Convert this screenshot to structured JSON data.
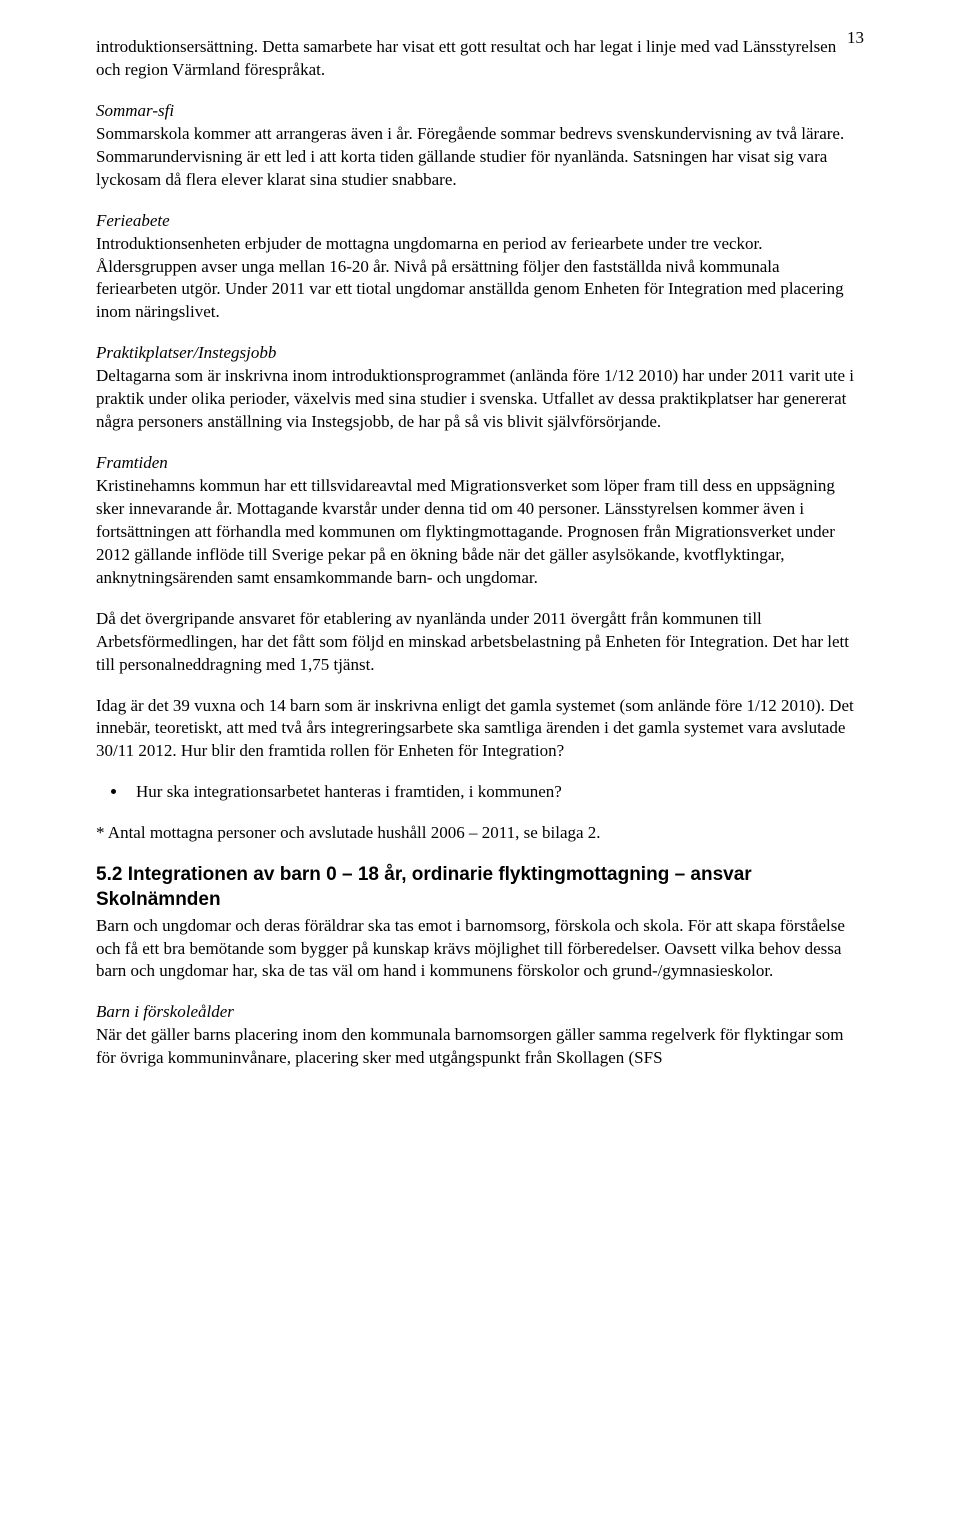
{
  "pageNumber": "13",
  "para1": "introduktionsersättning. Detta samarbete har visat ett gott resultat och har legat i linje med vad Länsstyrelsen och region Värmland förespråkat.",
  "sommarSfiLabel": "Sommar-sfi",
  "sommarSfiBody": "Sommarskola kommer att arrangeras även i år. Föregående sommar bedrevs svenskundervisning av två lärare. Sommarundervisning är ett led i att korta tiden gällande studier för nyanlända. Satsningen har visat sig vara lyckosam då flera elever klarat sina studier snabbare.",
  "ferieLabel": "Ferieabete",
  "ferieBody": "Introduktionsenheten erbjuder de mottagna ungdomarna en period av feriearbete under tre veckor. Åldersgruppen avser unga mellan 16-20 år. Nivå på ersättning följer den fastställda nivå kommunala feriearbeten utgör. Under 2011 var ett tiotal ungdomar anställda genom Enheten för Integration med placering inom näringslivet.",
  "praktikLabel": "Praktikplatser/Instegsjobb",
  "praktikBody": "Deltagarna som är inskrivna inom introduktionsprogrammet (anlända före 1/12 2010) har under 2011 varit ute i praktik under olika perioder, växelvis med sina studier i svenska. Utfallet av dessa praktikplatser har genererat några personers anställning via Instegsjobb, de har på så vis blivit självförsörjande.",
  "framtidenLabel": "Framtiden",
  "framtidenBody": "Kristinehamns kommun har ett tillsvidareavtal med Migrationsverket som löper fram till dess en uppsägning sker innevarande år. Mottagande kvarstår under denna tid om 40 personer. Länsstyrelsen kommer även i fortsättningen att förhandla med kommunen om flyktingmottagande. Prognosen från Migrationsverket under 2012 gällande inflöde till Sverige pekar på en ökning både när det gäller asylsökande, kvotflyktingar, anknytningsärenden samt ensamkommande barn- och ungdomar.",
  "para2": "Då det övergripande ansvaret för etablering av nyanlända under 2011 övergått från kommunen till Arbetsförmedlingen, har det fått som följd en minskad arbetsbelastning på Enheten för Integration. Det har lett till personalneddragning med 1,75 tjänst.",
  "para3": "Idag är det 39 vuxna och 14 barn som är inskrivna enligt det gamla systemet (som anlände före 1/12 2010).  Det innebär, teoretiskt, att med två års integreringsarbete ska samtliga ärenden i det gamla systemet vara avslutade 30/11 2012. Hur blir den framtida rollen för Enheten för Integration?",
  "bullet1": "Hur ska integrationsarbetet hanteras i framtiden, i kommunen?",
  "footnote": "* Antal mottagna personer och avslutade hushåll 2006 – 2011, se bilaga 2.",
  "heading52": "5.2 Integrationen av barn 0 – 18 år, ordinarie flyktingmottagning – ansvar Skolnämnden",
  "heading52Body": "Barn och ungdomar och deras föräldrar ska tas emot i barnomsorg, förskola och skola. För att skapa förståelse och få ett bra bemötande som bygger på kunskap krävs möjlighet till förberedelser. Oavsett vilka behov dessa barn och ungdomar har, ska de tas väl om hand i kommunens förskolor och grund-/gymnasieskolor.",
  "barnLabel": "Barn i förskoleålder",
  "barnBody": "När det gäller barns placering inom den kommunala barnomsorgen gäller samma regelverk för flyktingar som för övriga kommuninvånare, placering sker med utgångspunkt från Skollagen (SFS"
}
